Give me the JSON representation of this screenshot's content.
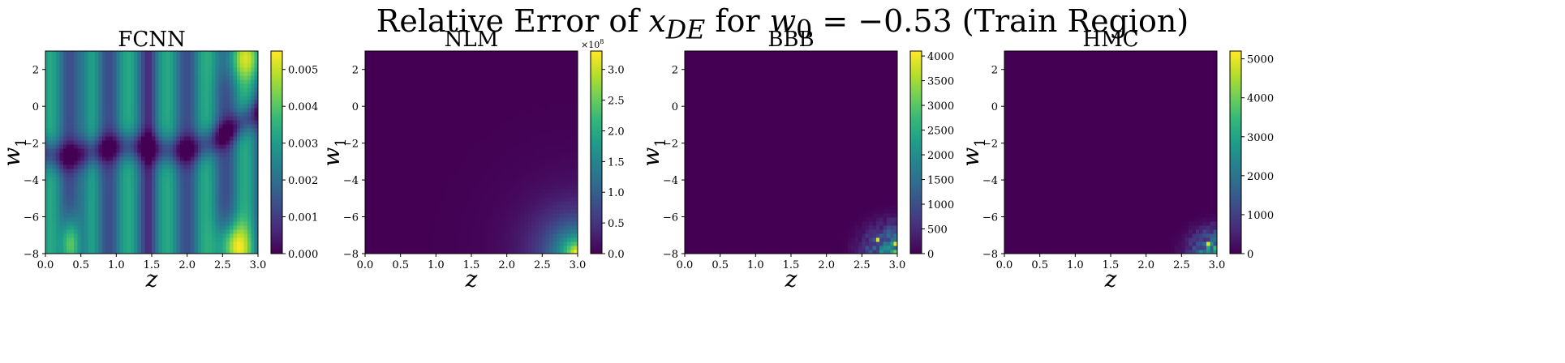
{
  "suptitle": {
    "prefix": "Relative Error of ",
    "x_var": "x",
    "x_sub": "DE",
    "middle": " for ",
    "w_var": "w",
    "w_sub": "0",
    "equals": " = −0.53",
    "suffix": " (Train Region)"
  },
  "colormap": "viridis",
  "colors": {
    "viridis": [
      "#440154",
      "#482878",
      "#3e4989",
      "#31688e",
      "#26828e",
      "#1f9e89",
      "#35b779",
      "#6ece58",
      "#b5de2b",
      "#fde725"
    ]
  },
  "chart_data": [
    {
      "type": "heatmap",
      "title": "FCNN",
      "xlabel": "z",
      "ylabel": "w1",
      "xlim": [
        0.0,
        3.0
      ],
      "ylim": [
        -8,
        3
      ],
      "xticks": [
        "0.0",
        "0.5",
        "1.0",
        "1.5",
        "2.0",
        "2.5",
        "3.0"
      ],
      "yticks": [
        "2",
        "0",
        "−2",
        "−4",
        "−6",
        "−8"
      ],
      "colorbar": {
        "min": 0.0,
        "max": 0.0055,
        "ticks": [
          "0.000",
          "0.001",
          "0.002",
          "0.003",
          "0.004",
          "0.005"
        ],
        "offset_label": ""
      },
      "pattern": "smooth-bands"
    },
    {
      "type": "heatmap",
      "title": "NLM",
      "xlabel": "z",
      "ylabel": "w1",
      "xlim": [
        0.0,
        3.0
      ],
      "ylim": [
        -8,
        3
      ],
      "xticks": [
        "0.0",
        "0.5",
        "1.0",
        "1.5",
        "2.0",
        "2.5",
        "3.0"
      ],
      "yticks": [
        "2",
        "0",
        "−2",
        "−4",
        "−6",
        "−8"
      ],
      "colorbar": {
        "min": 0.0,
        "max": 3.3,
        "ticks": [
          "0.0",
          "0.5",
          "1.0",
          "1.5",
          "2.0",
          "2.5",
          "3.0"
        ],
        "offset_base": "×10",
        "offset_exp": "8"
      },
      "pattern": "corner-glow"
    },
    {
      "type": "heatmap",
      "title": "BBB",
      "xlabel": "z",
      "ylabel": "w1",
      "xlim": [
        0.0,
        3.0
      ],
      "ylim": [
        -8,
        3
      ],
      "xticks": [
        "0.0",
        "0.5",
        "1.0",
        "1.5",
        "2.0",
        "2.5",
        "3.0"
      ],
      "yticks": [
        "2",
        "0",
        "−2",
        "−4",
        "−6",
        "−8"
      ],
      "colorbar": {
        "min": 0,
        "max": 4100,
        "ticks": [
          "0",
          "500",
          "1000",
          "1500",
          "2000",
          "2500",
          "3000",
          "3500",
          "4000"
        ],
        "offset_label": ""
      },
      "pattern": "corner-noise"
    },
    {
      "type": "heatmap",
      "title": "HMC",
      "xlabel": "z",
      "ylabel": "w1",
      "xlim": [
        0.0,
        3.0
      ],
      "ylim": [
        -8,
        3
      ],
      "xticks": [
        "0.0",
        "0.5",
        "1.0",
        "1.5",
        "2.0",
        "2.5",
        "3.0"
      ],
      "yticks": [
        "2",
        "0",
        "−2",
        "−4",
        "−6",
        "−8"
      ],
      "colorbar": {
        "min": 0,
        "max": 5200,
        "ticks": [
          "0",
          "1000",
          "2000",
          "3000",
          "4000",
          "5000"
        ],
        "offset_label": ""
      },
      "pattern": "corner-noise-sparse"
    }
  ]
}
